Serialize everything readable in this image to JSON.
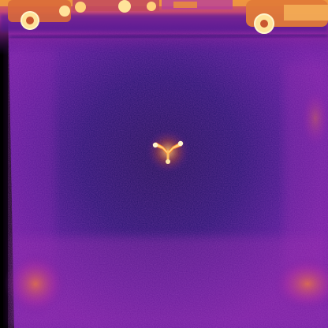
{
  "image": {
    "type": "thermal-aerial-photo",
    "palette": "ironbow",
    "colors": {
      "background": "#000000",
      "cold": "#1b0c4f",
      "cool": "#3a1290",
      "mid": "#7a1fa6",
      "warm": "#c23a8e",
      "hot": "#f29a2e",
      "hottest": "#fff2b0"
    },
    "objects": [
      {
        "name": "vehicle",
        "count": 4
      },
      {
        "name": "drone-heat-signature",
        "count": 1
      }
    ]
  }
}
